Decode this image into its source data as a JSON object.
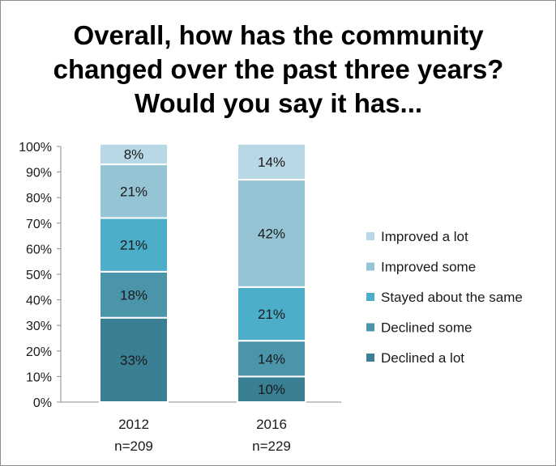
{
  "chart_data": {
    "type": "bar",
    "stacked": true,
    "title": "Overall, how has the community changed over the past three years? Would you say it has...",
    "categories": [
      "2012",
      "2016"
    ],
    "category_sublabels": [
      "n=209",
      "n=229"
    ],
    "ylim": [
      0,
      100
    ],
    "yticks": [
      "0%",
      "10%",
      "20%",
      "30%",
      "40%",
      "50%",
      "60%",
      "70%",
      "80%",
      "90%",
      "100%"
    ],
    "grid": false,
    "legend_position": "right",
    "series": [
      {
        "name": "Declined a lot",
        "values": [
          33,
          10
        ],
        "labels": [
          "33%",
          "10%"
        ],
        "color": "#3a7f93"
      },
      {
        "name": "Declined some",
        "values": [
          18,
          14
        ],
        "labels": [
          "18%",
          "14%"
        ],
        "color": "#4b95aa"
      },
      {
        "name": "Stayed about the same",
        "values": [
          21,
          21
        ],
        "labels": [
          "21%",
          "21%"
        ],
        "color": "#4daec9"
      },
      {
        "name": "Improved some",
        "values": [
          21,
          42
        ],
        "labels": [
          "21%",
          "42%"
        ],
        "color": "#95c4d4"
      },
      {
        "name": "Improved a lot",
        "values": [
          8,
          14
        ],
        "labels": [
          "8%",
          "14%"
        ],
        "color": "#b9d8e5"
      }
    ]
  }
}
